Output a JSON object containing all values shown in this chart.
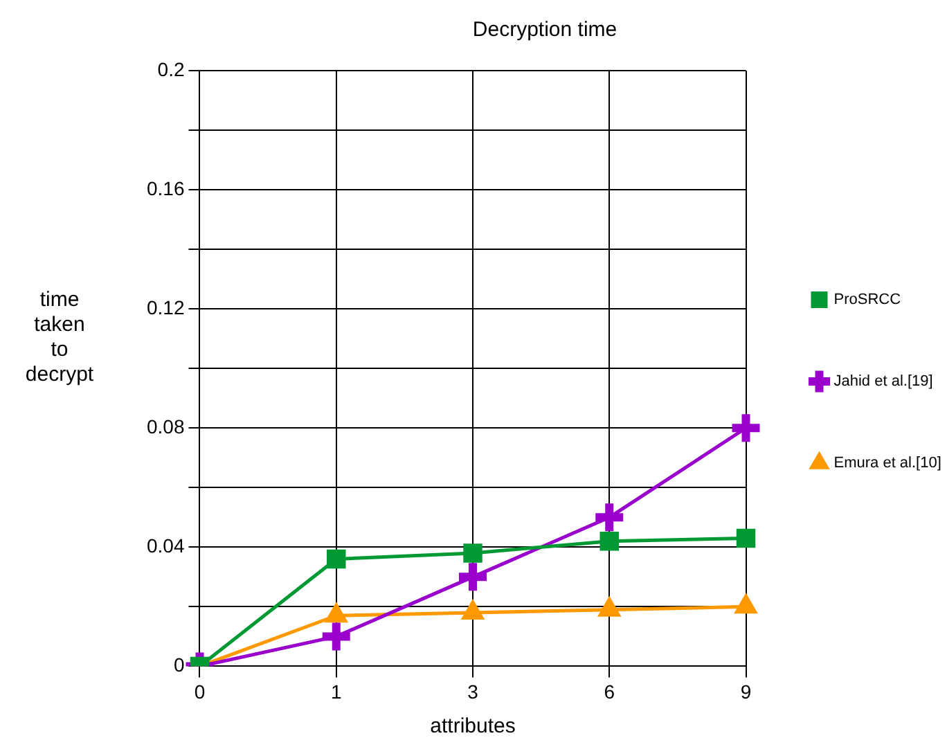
{
  "chart_data": {
    "type": "line",
    "title": "Decryption time",
    "xlabel": "attributes",
    "ylabel": "time taken to decrypt",
    "categories": [
      "0",
      "1",
      "3",
      "6",
      "9"
    ],
    "series": [
      {
        "name": "ProSRCC",
        "color": "#009933",
        "marker": "square",
        "values": [
          0,
          0.036,
          0.038,
          0.042,
          0.043
        ]
      },
      {
        "name": "Jahid et al.[19]",
        "color": "#9900cc",
        "marker": "cross",
        "values": [
          0,
          0.01,
          0.03,
          0.05,
          0.08
        ]
      },
      {
        "name": "Emura et al.[10]",
        "color": "#ff9900",
        "marker": "triangle",
        "values": [
          0,
          0.017,
          0.018,
          0.019,
          0.02
        ]
      }
    ],
    "ylim": [
      0,
      0.2
    ],
    "yticks": [
      0,
      {
        "value": 0.02,
        "label": null
      },
      0.04,
      {
        "value": 0.06,
        "label": null
      },
      0.08,
      {
        "value": 0.1,
        "label": null
      },
      0.12,
      {
        "value": 0.14,
        "label": null
      },
      0.16,
      {
        "value": 0.18,
        "label": null
      },
      0.2
    ],
    "grid": true,
    "legend": "right",
    "line_style": "solid"
  }
}
